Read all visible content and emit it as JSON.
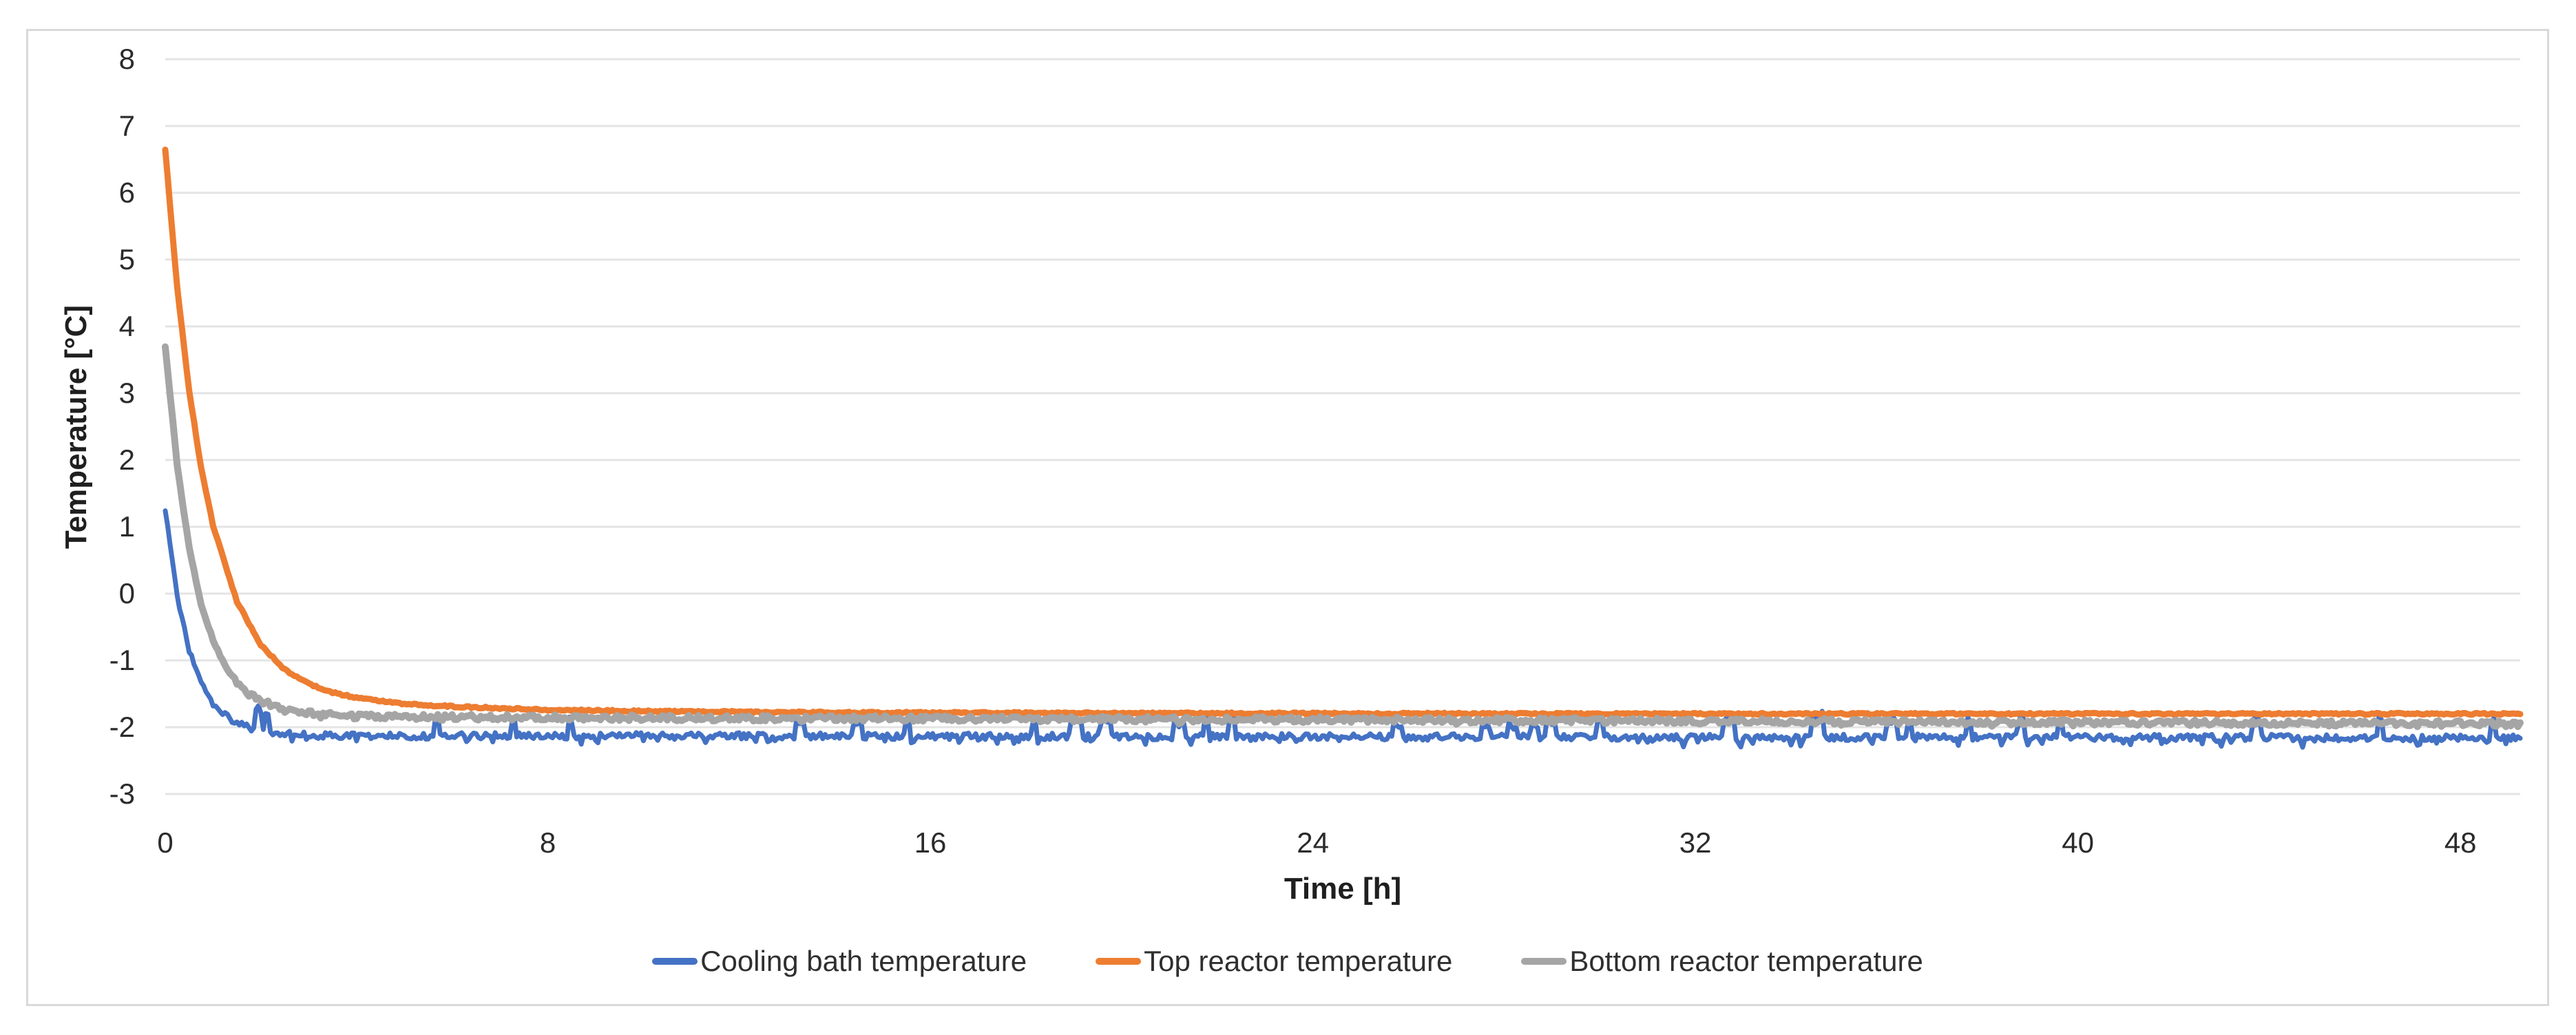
{
  "figure": {
    "background_color": "#ffffff",
    "frame_border_color": "#d9d9d9"
  },
  "chart_data": {
    "type": "line",
    "title": "",
    "xlabel": "Time [h]",
    "ylabel": "Temperature [°C]",
    "xlim": [
      0,
      49.25
    ],
    "ylim": [
      -3,
      8
    ],
    "x_ticks": [
      0,
      8,
      16,
      24,
      32,
      40,
      48
    ],
    "y_ticks": [
      8,
      7,
      6,
      5,
      4,
      3,
      2,
      1,
      0,
      -1,
      -2,
      -3
    ],
    "grid": "horizontal-only",
    "gridline_color": "#e4e4e4",
    "axis_text_color": "#2b2b2b",
    "legend_position": "bottom",
    "series": [
      {
        "name": "Cooling bath temperature",
        "color": "#4472C4",
        "start_value_c": 1.25,
        "steady_value_c": -2.15,
        "points": [
          [
            0,
            1.25
          ],
          [
            0.25,
            -0.04
          ],
          [
            0.5,
            -0.84
          ],
          [
            0.75,
            -1.33
          ],
          [
            1.0,
            -1.64
          ],
          [
            1.25,
            -1.82
          ],
          [
            1.5,
            -1.94
          ],
          [
            1.75,
            -2.01
          ],
          [
            2.0,
            -2.06
          ],
          [
            2.5,
            -2.1
          ],
          [
            3.0,
            -2.12
          ],
          [
            5.0,
            -2.13
          ],
          [
            10,
            -2.13
          ],
          [
            20,
            -2.14
          ],
          [
            30,
            -2.15
          ],
          [
            40,
            -2.15
          ],
          [
            49.25,
            -2.16
          ]
        ]
      },
      {
        "name": "Top reactor temperature",
        "color": "#ED7D31",
        "start_value_c": 6.65,
        "steady_value_c": -1.8,
        "points": [
          [
            0,
            6.65
          ],
          [
            0.25,
            4.58
          ],
          [
            0.5,
            3.04
          ],
          [
            0.75,
            1.88
          ],
          [
            1.0,
            1.02
          ],
          [
            1.5,
            -0.12
          ],
          [
            2.0,
            -0.77
          ],
          [
            2.5,
            -1.14
          ],
          [
            3.0,
            -1.35
          ],
          [
            3.5,
            -1.48
          ],
          [
            4.0,
            -1.56
          ],
          [
            5.0,
            -1.65
          ],
          [
            6.0,
            -1.69
          ],
          [
            8.0,
            -1.74
          ],
          [
            10,
            -1.76
          ],
          [
            14,
            -1.78
          ],
          [
            20,
            -1.79
          ],
          [
            30,
            -1.8
          ],
          [
            40,
            -1.8
          ],
          [
            49.25,
            -1.8
          ]
        ]
      },
      {
        "name": "Bottom reactor temperature",
        "color": "#A5A5A5",
        "start_value_c": 3.7,
        "steady_value_c": -1.92,
        "points": [
          [
            0,
            3.7
          ],
          [
            0.25,
            1.92
          ],
          [
            0.5,
            0.68
          ],
          [
            0.75,
            -0.15
          ],
          [
            1.0,
            -0.71
          ],
          [
            1.25,
            -1.08
          ],
          [
            1.5,
            -1.33
          ],
          [
            1.75,
            -1.5
          ],
          [
            2.0,
            -1.61
          ],
          [
            2.5,
            -1.74
          ],
          [
            3.0,
            -1.79
          ],
          [
            4.0,
            -1.84
          ],
          [
            6.0,
            -1.85
          ],
          [
            10,
            -1.86
          ],
          [
            20,
            -1.88
          ],
          [
            30,
            -1.9
          ],
          [
            40,
            -1.93
          ],
          [
            49.25,
            -1.95
          ]
        ]
      }
    ]
  }
}
